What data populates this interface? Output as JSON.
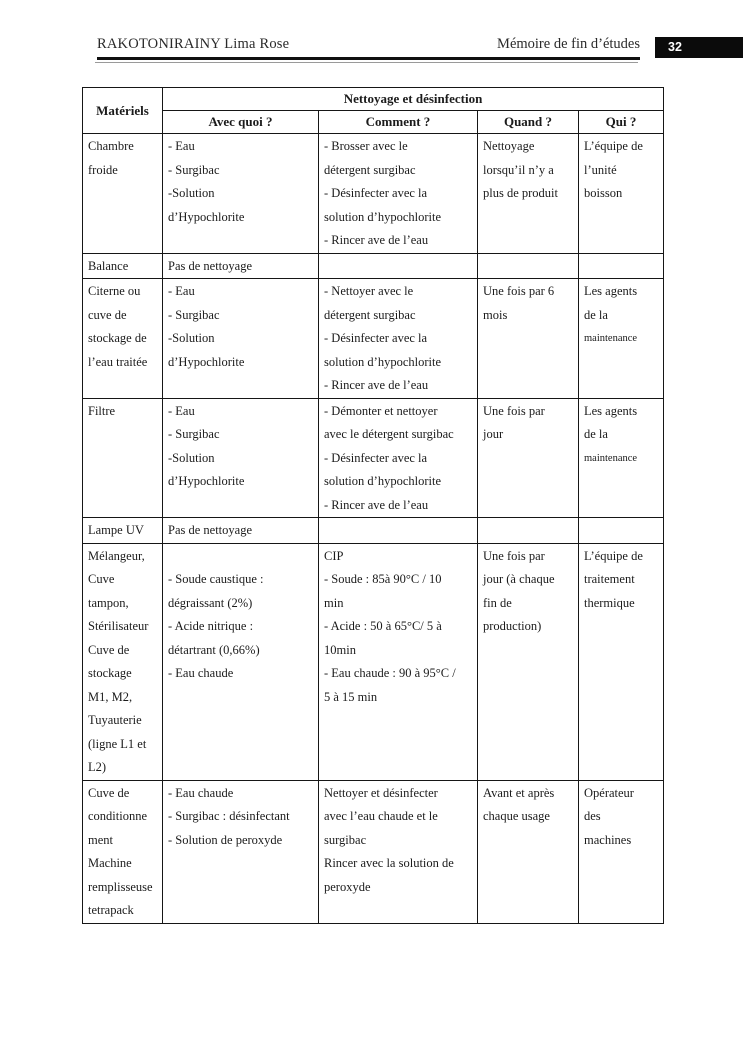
{
  "page_header": {
    "author": "RAKOTONIRAINY Lima Rose",
    "doc_title": "Mémoire de fin d’études",
    "page_number": "32"
  },
  "table": {
    "header": {
      "materials": "Matériels",
      "group": "Nettoyage et désinfection",
      "columns": [
        "Avec quoi ?",
        "Comment ?",
        "Quand ?",
        "Qui ?"
      ]
    },
    "rows": [
      {
        "material": [
          "Chambre",
          "froide"
        ],
        "with_what": [
          "- Eau",
          "- Surgibac",
          "-Solution",
          "d’Hypochlorite"
        ],
        "how": [
          "- Brosser avec le",
          "détergent surgibac",
          "- Désinfecter avec la",
          "solution d’hypochlorite",
          "- Rincer ave de l’eau"
        ],
        "when": [
          "Nettoyage",
          "lorsqu’il n’y a",
          "plus de produit"
        ],
        "who": [
          "L’équipe de",
          "l’unité",
          "boisson"
        ]
      },
      {
        "material": [
          "Balance"
        ],
        "with_what": [
          "Pas de nettoyage"
        ],
        "how": [],
        "when": [],
        "who": []
      },
      {
        "material": [
          "Citerne ou",
          "cuve de",
          "stockage de",
          "l’eau traitée"
        ],
        "with_what": [
          "- Eau",
          "- Surgibac",
          "-Solution",
          "d’Hypochlorite"
        ],
        "how": [
          "- Nettoyer avec le",
          "détergent surgibac",
          "- Désinfecter avec la",
          "solution d’hypochlorite",
          "- Rincer ave de l’eau"
        ],
        "when": [
          "Une fois par 6",
          "mois"
        ],
        "who": [
          "Les agents",
          "de la",
          {
            "text": "maintenance",
            "small": true
          }
        ]
      },
      {
        "material": [
          "Filtre"
        ],
        "with_what": [
          "- Eau",
          "- Surgibac",
          "-Solution",
          "d’Hypochlorite"
        ],
        "how": [
          "- Démonter et nettoyer",
          "avec le détergent surgibac",
          "- Désinfecter avec la",
          "solution d’hypochlorite",
          "- Rincer ave de l’eau"
        ],
        "when": [
          "Une fois par",
          "jour"
        ],
        "who": [
          "Les agents",
          "de la",
          {
            "text": "maintenance",
            "small": true
          }
        ]
      },
      {
        "material": [
          "Lampe UV"
        ],
        "with_what": [
          "Pas de nettoyage"
        ],
        "how": [],
        "when": [],
        "who": []
      },
      {
        "material": [
          "Mélangeur,",
          "Cuve",
          "tampon,",
          "Stérilisateur",
          "Cuve de",
          "stockage",
          "M1, M2,",
          "Tuyauterie",
          "(ligne L1 et",
          "L2)"
        ],
        "with_what": [
          "",
          "- Soude caustique :",
          "dégraissant (2%)",
          "- Acide nitrique :",
          "détartrant (0,66%)",
          "- Eau chaude"
        ],
        "how": [
          "CIP",
          "- Soude : 85à 90°C / 10",
          "min",
          "- Acide : 50 à 65°C/ 5 à",
          "10min",
          "- Eau chaude : 90 à 95°C /",
          "5 à 15 min"
        ],
        "when": [
          "Une fois par",
          "jour (à chaque",
          "fin de",
          "production)"
        ],
        "who": [
          "L’équipe de",
          "traitement",
          "thermique"
        ]
      },
      {
        "material": [
          "Cuve de",
          "conditionne",
          "ment",
          "Machine",
          "remplisseuse",
          "tetrapack"
        ],
        "with_what": [
          "- Eau chaude",
          "- Surgibac : désinfectant",
          "- Solution de peroxyde"
        ],
        "how": [
          "Nettoyer et désinfecter",
          "avec l’eau chaude et le",
          "surgibac",
          "Rincer avec la solution de",
          "peroxyde"
        ],
        "when": [
          "Avant et après",
          "chaque usage"
        ],
        "who": [
          "Opérateur",
          "des",
          "machines"
        ]
      }
    ]
  }
}
